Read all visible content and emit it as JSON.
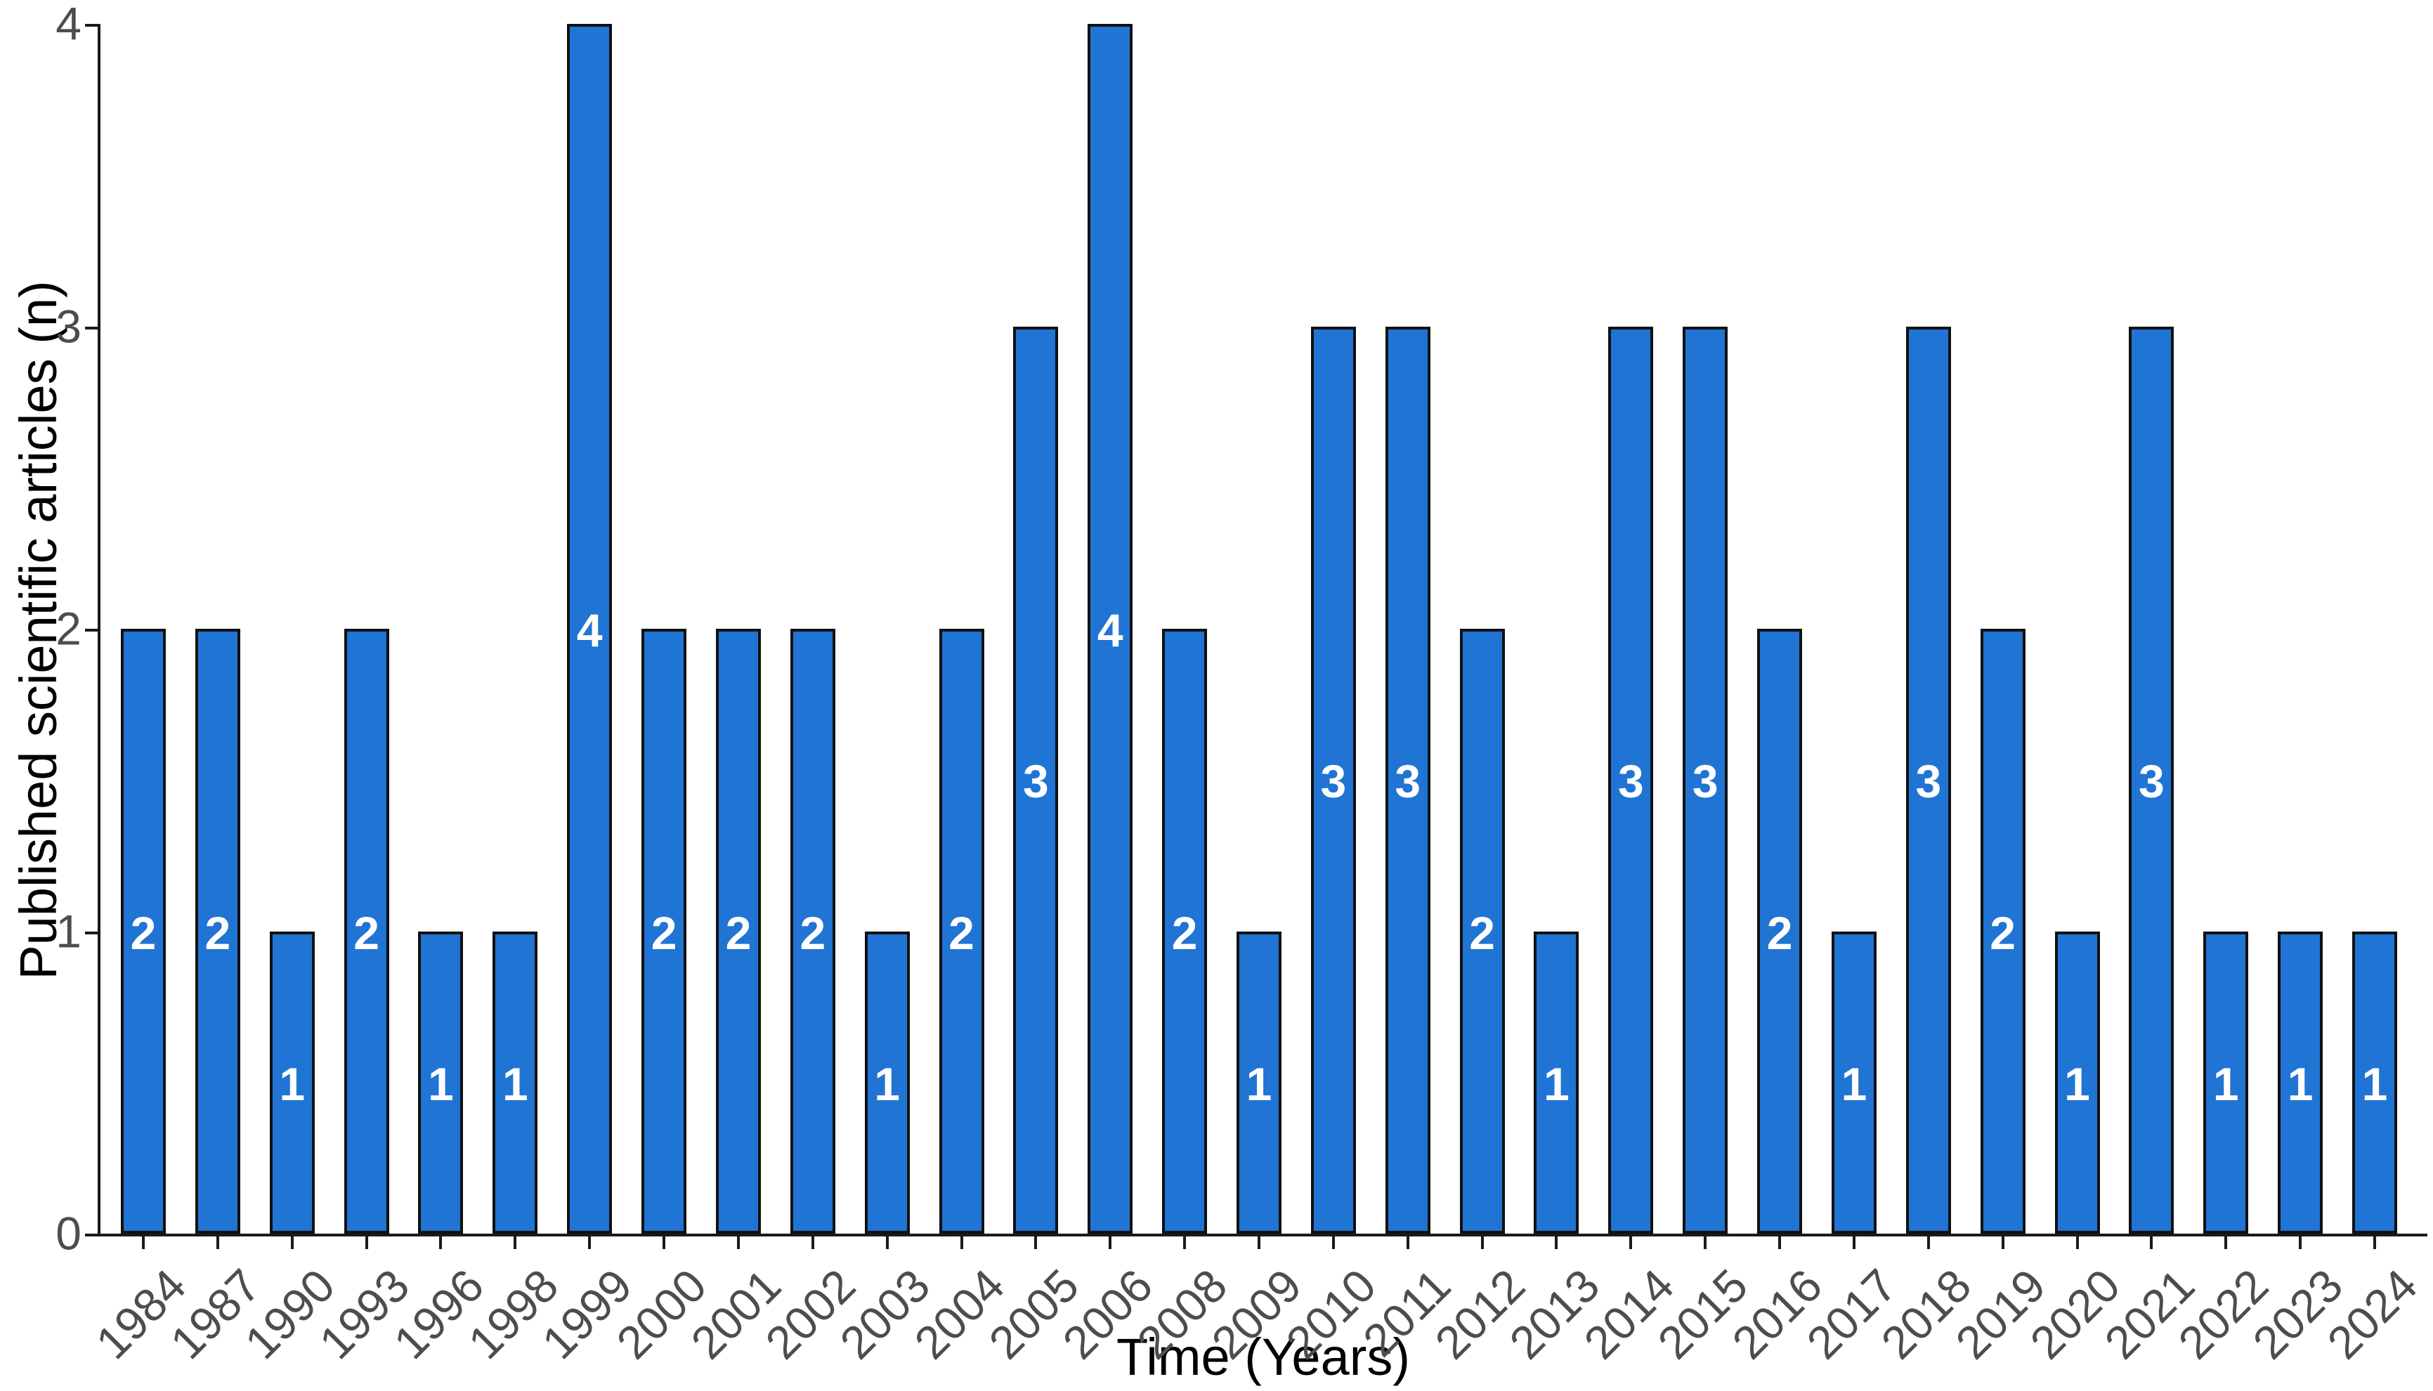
{
  "chart_data": {
    "type": "bar",
    "title": "",
    "xlabel": "Time (Years)",
    "ylabel": "Published scientific articles (n)",
    "categories": [
      "1984",
      "1987",
      "1990",
      "1993",
      "1996",
      "1998",
      "1999",
      "2000",
      "2001",
      "2002",
      "2003",
      "2004",
      "2005",
      "2006",
      "2008",
      "2009",
      "2010",
      "2011",
      "2012",
      "2013",
      "2014",
      "2015",
      "2016",
      "2017",
      "2018",
      "2019",
      "2020",
      "2021",
      "2022",
      "2023",
      "2024"
    ],
    "values": [
      2,
      2,
      1,
      2,
      1,
      1,
      4,
      2,
      2,
      2,
      1,
      2,
      3,
      4,
      2,
      1,
      3,
      3,
      2,
      1,
      3,
      3,
      2,
      1,
      3,
      2,
      1,
      3,
      1,
      1,
      1
    ],
    "yticks": [
      0,
      1,
      2,
      3,
      4
    ],
    "ylim": [
      0,
      4
    ],
    "grid": false,
    "legend_position": "none",
    "bar_fill": "#2074d3",
    "bar_stroke": "#111111",
    "value_label_color": "#ffffff",
    "tick_label_color": "#4d4d4d",
    "axis_color": "#1a1a1a",
    "axis_title_color": "#000000"
  }
}
